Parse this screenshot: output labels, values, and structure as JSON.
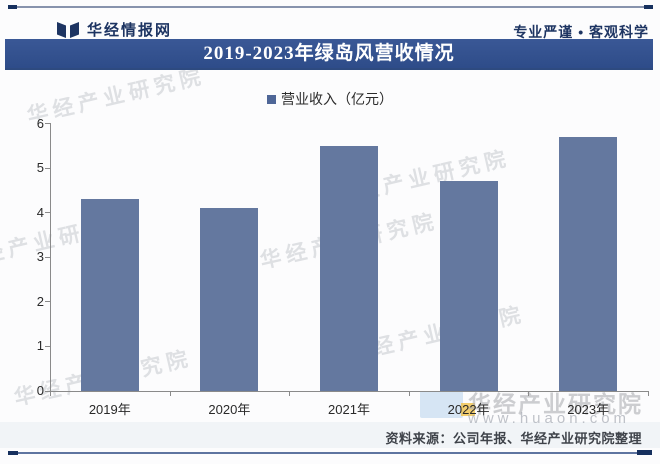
{
  "header": {
    "brand": "华经情报网",
    "slogan": "专业严谨 • 客观科学",
    "brand_color": "#1d3462"
  },
  "title_bar": {
    "title": "2019-2023年绿岛风营收情况",
    "bg_color": "#32508d",
    "text_color": "#ffffff"
  },
  "legend": {
    "marker_color": "#4e6697",
    "label": "营业收入（亿元）"
  },
  "chart_data": {
    "type": "bar",
    "title": "2019-2023年绿岛风营收情况",
    "series_name": "营业收入（亿元）",
    "categories": [
      "2019年",
      "2020年",
      "2021年",
      "2022年",
      "2023年"
    ],
    "values": [
      4.3,
      4.1,
      5.5,
      4.7,
      5.7
    ],
    "xlabel": "",
    "ylabel": "",
    "ylim": [
      0,
      6
    ],
    "yticks": [
      0,
      1,
      2,
      3,
      4,
      5,
      6
    ],
    "bar_color": "#64789f",
    "grid": false,
    "legend_position": "top"
  },
  "watermark": {
    "text": "华经产业研究院",
    "url": "www.huaon.com"
  },
  "footer": {
    "source": "资料来源：公司年报、华经产业研究院整理"
  }
}
